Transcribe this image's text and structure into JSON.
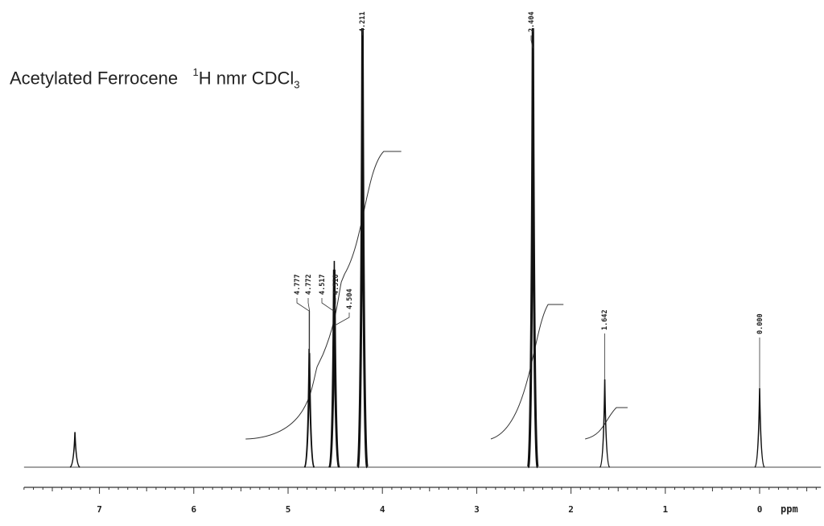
{
  "chart_data": {
    "type": "line",
    "title": {
      "compound": "Acetylated Ferrocene",
      "nucleus_mass": "1",
      "nucleus": "H nmr CDCl",
      "solvent_subscript": "3"
    },
    "xlabel": "ppm",
    "x_reversed": true,
    "xlim": [
      7.8,
      -0.65
    ],
    "x_ticks": [
      7,
      6,
      5,
      4,
      3,
      2,
      1,
      0
    ],
    "peaks": [
      {
        "ppm": 7.26,
        "rel_height": 0.08,
        "label": ""
      },
      {
        "ppm": 4.777,
        "rel_height": 0.27,
        "label": "4.777"
      },
      {
        "ppm": 4.772,
        "rel_height": 0.26,
        "label": "4.772"
      },
      {
        "ppm": 4.517,
        "rel_height": 0.45,
        "label": "4.517"
      },
      {
        "ppm": 4.51,
        "rel_height": 0.47,
        "label": "4.510"
      },
      {
        "ppm": 4.504,
        "rel_height": 0.45,
        "label": "4.504"
      },
      {
        "ppm": 4.211,
        "rel_height": 1.0,
        "label": "4.211"
      },
      {
        "ppm": 2.404,
        "rel_height": 1.0,
        "label": "2.404"
      },
      {
        "ppm": 1.642,
        "rel_height": 0.2,
        "label": "1.642"
      },
      {
        "ppm": 0.0,
        "rel_height": 0.18,
        "label": "0.000"
      }
    ],
    "integrals": [
      {
        "from_ppm": 5.45,
        "to_ppm": 4.63
      },
      {
        "from_ppm": 4.63,
        "to_ppm": 4.4
      },
      {
        "from_ppm": 4.4,
        "to_ppm": 3.8
      },
      {
        "from_ppm": 2.85,
        "to_ppm": 2.08
      },
      {
        "from_ppm": 1.85,
        "to_ppm": 1.4
      }
    ]
  }
}
